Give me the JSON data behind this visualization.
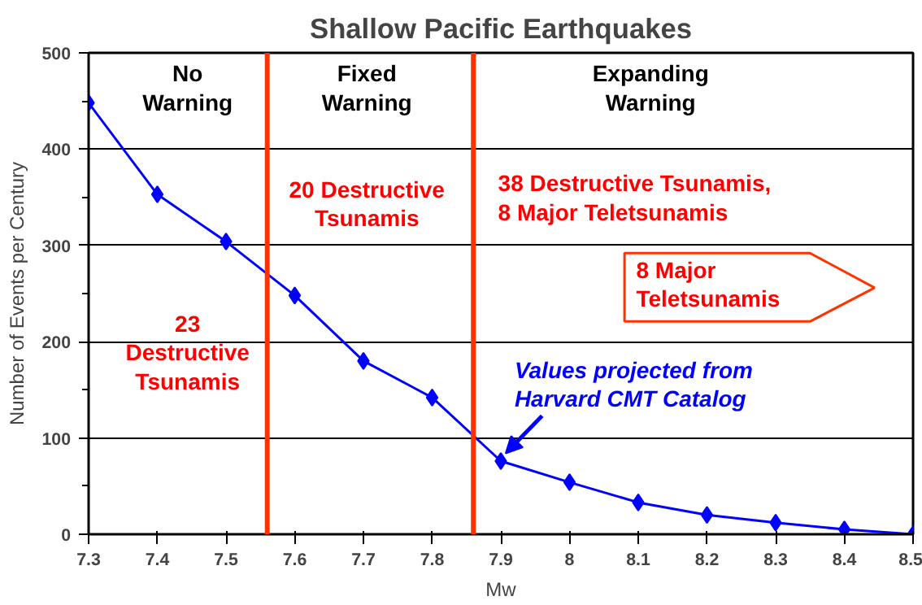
{
  "chart_data": {
    "type": "line",
    "title": "Shallow Pacific Earthquakes",
    "xlabel": "Mw",
    "ylabel": "Number of Events per Century",
    "x": [
      7.3,
      7.4,
      7.5,
      7.6,
      7.7,
      7.8,
      7.9,
      8.0,
      8.1,
      8.2,
      8.3,
      8.4,
      8.5
    ],
    "series": [
      {
        "color": "#0000ff",
        "values": [
          448,
          353,
          304,
          248,
          180,
          142,
          76,
          54,
          33,
          20,
          12,
          5,
          0
        ]
      }
    ],
    "xlim": [
      7.3,
      8.5
    ],
    "xticks": [
      7.3,
      7.4,
      7.5,
      7.6,
      7.7,
      7.8,
      7.9,
      {
        "value": 8.0,
        "label": "8"
      },
      8.1,
      8.2,
      8.3,
      8.4,
      8.5
    ],
    "ylim": [
      0,
      500
    ],
    "yticks": [
      0,
      100,
      200,
      300,
      400,
      500
    ],
    "grid": "y",
    "marker": "diamond",
    "line_style": "solid",
    "ref_lines": [
      {
        "axis": "x",
        "value": 7.56,
        "color": "#ff3300"
      },
      {
        "axis": "x",
        "value": 7.86,
        "color": "#ff3300"
      }
    ],
    "annotations": [
      "No\nWarning",
      "Fixed\nWarning",
      "Expanding\nWarning",
      "20 Destructive\nTsunamis",
      "38 Destructive Tsunamis,\n8 Major Teletsunamis",
      "23\nDestructive\nTsunamis",
      "8 Major\nTeletsunamis",
      {
        "text": "Values projected from\nHarvard CMT Catalog",
        "x": 7.9,
        "y": 76
      }
    ]
  }
}
